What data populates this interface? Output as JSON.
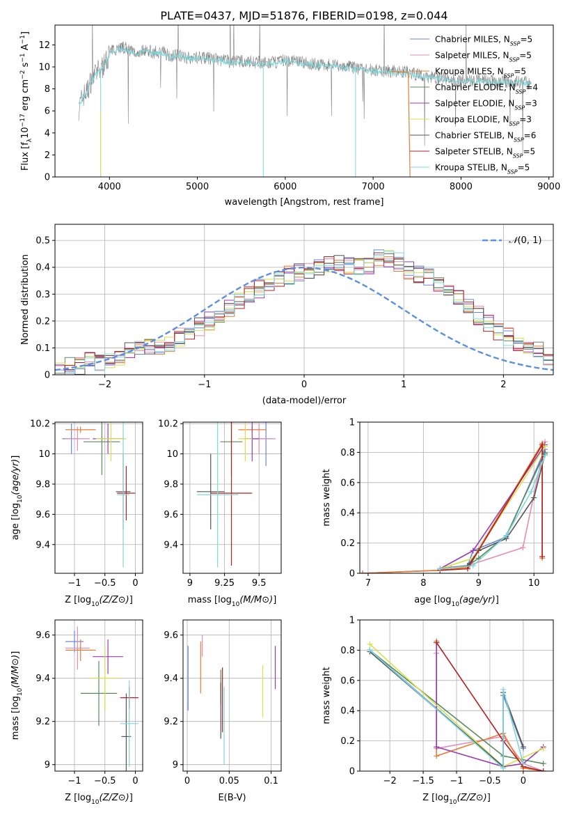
{
  "title": "PLATE=0437, MJD=51876, FIBERID=0198, z=0.044",
  "series_colors": [
    "#6a86e0",
    "#e58bb6",
    "#e87c2f",
    "#5a8a5f",
    "#9a3ab5",
    "#d6e04a",
    "#555555",
    "#b22020",
    "#7fd6dc"
  ],
  "chart_data": [
    {
      "id": "spectrum",
      "type": "line",
      "xlabel": "wavelength [Angstrom, rest frame]",
      "ylabel": "Flux [f_λ10^-17 erg cm^-2 s^-1 A^-1]",
      "xlim": [
        3380,
        9050
      ],
      "ylim": [
        0,
        13.8
      ],
      "xticks": [
        4000,
        5000,
        6000,
        7000,
        8000,
        9000
      ],
      "yticks": [
        0,
        2,
        4,
        6,
        8,
        10,
        12
      ],
      "grid": false,
      "legend_position": "top-right",
      "legend": [
        "Chabrier MILES, N_SSP=5",
        "Salpeter MILES, N_SSP=5",
        "Kroupa MILES, N_SSP=5",
        "Chabrier ELODIE, N_SSP=4",
        "Salpeter ELODIE, N_SSP=3",
        "Kroupa ELODIE, N_SSP=3",
        "Chabrier STELIB, N_SSP=6",
        "Salpeter STELIB, N_SSP=5",
        "Kroupa STELIB, N_SSP=5"
      ],
      "data_series": {
        "name": "data",
        "x": [
          3650,
          3700,
          3750,
          3800,
          3850,
          3900,
          3950,
          4000,
          4100,
          4200,
          4300,
          4400,
          4500,
          4600,
          4700,
          4800,
          4900,
          5000,
          5200,
          5400,
          5600,
          5800,
          6000,
          6200,
          6400,
          6600,
          6800,
          7000,
          7200,
          7400,
          7600,
          7800,
          8000,
          8200,
          8400,
          8600,
          8800
        ],
        "y": [
          6.2,
          7.4,
          7.8,
          9.0,
          9.4,
          9.8,
          10.3,
          11.3,
          11.8,
          11.7,
          11.2,
          11.6,
          11.3,
          11.4,
          11.0,
          11.1,
          10.8,
          10.9,
          10.7,
          10.5,
          10.5,
          10.3,
          10.6,
          10.4,
          10.2,
          10.1,
          9.9,
          9.7,
          9.6,
          9.5,
          9.1,
          9.0,
          8.7,
          8.8,
          8.6,
          8.7,
          8.5
        ]
      },
      "model_series": {
        "x": [
          3650,
          3700,
          3750,
          3800,
          3850,
          3900,
          3950,
          4000,
          4100,
          4200,
          4300,
          4400,
          4500,
          4600,
          4700,
          4800,
          4900,
          5000,
          5200,
          5400,
          5600,
          5800,
          6000,
          6200,
          6400,
          6600,
          6800,
          7000,
          7200,
          7400,
          7600,
          7800,
          8000,
          8200,
          8400,
          8600,
          8800
        ],
        "y": [
          6.6,
          7.2,
          7.7,
          8.8,
          9.3,
          9.7,
          10.2,
          11.2,
          11.6,
          11.5,
          11.1,
          11.4,
          11.2,
          11.2,
          10.9,
          11.0,
          10.8,
          10.8,
          10.6,
          10.4,
          10.4,
          10.3,
          10.5,
          10.3,
          10.1,
          10.0,
          9.8,
          9.6,
          9.5,
          9.4,
          9.0,
          8.9,
          8.7,
          8.7,
          8.6,
          8.6,
          8.5
        ]
      }
    },
    {
      "id": "residuals",
      "type": "histogram",
      "xlabel": "(data-model)/error",
      "ylabel": "Normed distribution",
      "xlim": [
        -2.5,
        2.5
      ],
      "ylim": [
        0,
        0.56
      ],
      "xticks": [
        -2,
        -1,
        0,
        1,
        2
      ],
      "yticks": [
        0,
        0.1,
        0.2,
        0.3,
        0.4,
        0.5
      ],
      "grid": true,
      "legend_position": "top-right",
      "reference_curve": "N(0,1)",
      "bin_edges_start": -2.5,
      "bin_width": 0.1,
      "values": [
        0.02,
        0.03,
        0.03,
        0.05,
        0.05,
        0.06,
        0.07,
        0.09,
        0.1,
        0.1,
        0.11,
        0.12,
        0.14,
        0.16,
        0.18,
        0.2,
        0.22,
        0.25,
        0.27,
        0.3,
        0.32,
        0.33,
        0.35,
        0.37,
        0.38,
        0.39,
        0.4,
        0.41,
        0.42,
        0.41,
        0.4,
        0.41,
        0.43,
        0.43,
        0.42,
        0.39,
        0.37,
        0.36,
        0.34,
        0.31,
        0.29,
        0.25,
        0.22,
        0.19,
        0.16,
        0.14,
        0.12,
        0.1,
        0.09,
        0.07
      ]
    },
    {
      "id": "age_vs_Z",
      "type": "errorbar",
      "xlabel": "Z [log10(Z/Z⊙)]",
      "ylabel": "age [log10(age/yr)]",
      "xlim": [
        -1.32,
        0.12
      ],
      "ylim": [
        9.21,
        10.21
      ],
      "xticks": [
        -1.0,
        -0.5,
        0.0
      ],
      "yticks": [
        9.4,
        9.6,
        9.8,
        10.0,
        10.2
      ],
      "grid": true,
      "points": [
        {
          "x": -1.05,
          "y": 10.1,
          "xerr": 0.15,
          "yerr": 0.1
        },
        {
          "x": -0.95,
          "y": 10.1,
          "xerr": 0.2,
          "yerr": 0.08
        },
        {
          "x": -0.9,
          "y": 10.16,
          "xerr": 0.25,
          "yerr": 0.02
        },
        {
          "x": -0.55,
          "y": 10.08,
          "xerr": 0.3,
          "yerr": 0.22
        },
        {
          "x": -0.45,
          "y": 10.1,
          "xerr": 0.25,
          "yerr": 0.1
        },
        {
          "x": -0.4,
          "y": 10.1,
          "xerr": 0.25,
          "yerr": 0.15
        },
        {
          "x": -0.2,
          "y": 9.75,
          "xerr": 0.12,
          "yerr": 0.25
        },
        {
          "x": -0.15,
          "y": 9.74,
          "xerr": 0.15,
          "yerr": 0.18
        },
        {
          "x": -0.2,
          "y": 9.73,
          "xerr": 0.1,
          "yerr": 0.48
        }
      ]
    },
    {
      "id": "age_vs_mass",
      "type": "errorbar",
      "xlabel": "mass [log10(M/M⊙)]",
      "ylabel": "",
      "xlim": [
        8.95,
        9.66
      ],
      "ylim": [
        9.21,
        10.21
      ],
      "xticks": [
        9.0,
        9.25,
        9.5
      ],
      "yticks": [
        9.4,
        9.6,
        9.8,
        10.0,
        10.2
      ],
      "grid": true,
      "points": [
        {
          "x": 9.55,
          "y": 10.1,
          "xerr": 0.05,
          "yerr": 0.18
        },
        {
          "x": 9.5,
          "y": 10.1,
          "xerr": 0.12,
          "yerr": 0.1
        },
        {
          "x": 9.45,
          "y": 10.16,
          "xerr": 0.1,
          "yerr": 0.02
        },
        {
          "x": 9.3,
          "y": 10.08,
          "xerr": 0.08,
          "yerr": 0.22
        },
        {
          "x": 9.45,
          "y": 10.1,
          "xerr": 0.05,
          "yerr": 0.15
        },
        {
          "x": 9.4,
          "y": 10.1,
          "xerr": 0.05,
          "yerr": 0.15
        },
        {
          "x": 9.15,
          "y": 9.75,
          "xerr": 0.1,
          "yerr": 0.25
        },
        {
          "x": 9.3,
          "y": 9.74,
          "xerr": 0.15,
          "yerr": 0.48
        },
        {
          "x": 9.2,
          "y": 9.73,
          "xerr": 0.15,
          "yerr": 0.48
        }
      ]
    },
    {
      "id": "weight_vs_age",
      "type": "line",
      "xlabel": "age [log10(age/yr)]",
      "ylabel": "mass weight",
      "xlim": [
        6.85,
        10.35
      ],
      "ylim": [
        0,
        1.0
      ],
      "xticks": [
        7,
        8,
        9,
        10
      ],
      "yticks": [
        0.0,
        0.2,
        0.4,
        0.6,
        0.8,
        1.0
      ],
      "grid": true,
      "lines": [
        {
          "x": [
            6.9,
            8.3,
            8.5,
            8.8,
            8.9,
            9.5,
            10.2
          ],
          "y": [
            0.0,
            0.02,
            0.04,
            0.05,
            0.15,
            0.24,
            0.82
          ]
        },
        {
          "x": [
            6.9,
            8.3,
            8.5,
            8.8,
            9.8,
            10.2
          ],
          "y": [
            0.0,
            0.02,
            0.04,
            0.05,
            0.17,
            0.87
          ]
        },
        {
          "x": [
            6.9,
            8.3,
            8.8,
            10.15,
            10.15
          ],
          "y": [
            0.0,
            0.02,
            0.04,
            0.86,
            0.1
          ]
        },
        {
          "x": [
            8.3,
            8.8,
            9.0,
            9.5,
            10.2
          ],
          "y": [
            0.03,
            0.05,
            0.1,
            0.25,
            0.8
          ]
        },
        {
          "x": [
            8.3,
            8.9,
            10.2
          ],
          "y": [
            0.03,
            0.15,
            0.85
          ]
        },
        {
          "x": [
            8.3,
            8.9,
            10.2
          ],
          "y": [
            0.03,
            0.1,
            0.84
          ]
        },
        {
          "x": [
            8.3,
            8.8,
            9.0,
            9.5,
            10.0,
            10.2
          ],
          "y": [
            0.03,
            0.05,
            0.15,
            0.23,
            0.5,
            0.79
          ]
        },
        {
          "x": [
            8.3,
            8.8,
            10.15,
            10.15
          ],
          "y": [
            0.02,
            0.03,
            0.85,
            0.11
          ]
        },
        {
          "x": [
            8.3,
            8.9,
            9.5,
            9.95,
            10.2
          ],
          "y": [
            0.03,
            0.05,
            0.25,
            0.54,
            0.78
          ]
        }
      ]
    },
    {
      "id": "mass_vs_Z",
      "type": "errorbar",
      "xlabel": "Z [log10(Z/Z⊙)]",
      "ylabel": "mass [log10(M/M⊙)]",
      "xlim": [
        -1.32,
        0.12
      ],
      "ylim": [
        8.97,
        9.67
      ],
      "xticks": [
        -1.0,
        -0.5,
        0.0
      ],
      "yticks": [
        9.0,
        9.2,
        9.4,
        9.6
      ],
      "grid": true,
      "points": [
        {
          "x": -1.0,
          "y": 9.57,
          "xerr": 0.15,
          "yerr": 0.05
        },
        {
          "x": -0.95,
          "y": 9.54,
          "xerr": 0.2,
          "yerr": 0.1
        },
        {
          "x": -0.9,
          "y": 9.53,
          "xerr": 0.25,
          "yerr": 0.05
        },
        {
          "x": -0.6,
          "y": 9.33,
          "xerr": 0.3,
          "yerr": 0.15
        },
        {
          "x": -0.45,
          "y": 9.5,
          "xerr": 0.25,
          "yerr": 0.08
        },
        {
          "x": -0.5,
          "y": 9.4,
          "xerr": 0.25,
          "yerr": 0.15
        },
        {
          "x": -0.15,
          "y": 9.13,
          "xerr": 0.08,
          "yerr": 0.2
        },
        {
          "x": -0.1,
          "y": 9.31,
          "xerr": 0.15,
          "yerr": 0.05
        },
        {
          "x": -0.1,
          "y": 9.19,
          "xerr": 0.15,
          "yerr": 0.2
        }
      ]
    },
    {
      "id": "mass_vs_EBV",
      "type": "errorbar",
      "xlabel": "E(B-V)",
      "ylabel": "",
      "xlim": [
        -0.005,
        0.112
      ],
      "ylim": [
        8.97,
        9.67
      ],
      "xticks": [
        0.0,
        0.05,
        0.1
      ],
      "yticks": [
        9.0,
        9.2,
        9.4,
        9.6
      ],
      "grid": true,
      "points": [
        {
          "x": 0.001,
          "y": 9.4,
          "xerr": 0,
          "yerr": 0.15
        },
        {
          "x": 0.018,
          "y": 9.55,
          "xerr": 0,
          "yerr": 0.05
        },
        {
          "x": 0.016,
          "y": 9.45,
          "xerr": 0,
          "yerr": 0.12
        },
        {
          "x": 0.04,
          "y": 9.36,
          "xerr": 0,
          "yerr": 0.08
        },
        {
          "x": 0.105,
          "y": 9.45,
          "xerr": 0,
          "yerr": 0.1
        },
        {
          "x": 0.09,
          "y": 9.34,
          "xerr": 0,
          "yerr": 0.12
        },
        {
          "x": 0.04,
          "y": 9.25,
          "xerr": 0,
          "yerr": 0.13
        },
        {
          "x": 0.042,
          "y": 9.3,
          "xerr": 0,
          "yerr": 0.15
        },
        {
          "x": 0.044,
          "y": 9.18,
          "xerr": 0,
          "yerr": 0.18
        }
      ]
    },
    {
      "id": "weight_vs_Z",
      "type": "line",
      "xlabel": "Z [log10(Z/Z⊙)]",
      "ylabel": "mass weight",
      "xlim": [
        -2.45,
        0.45
      ],
      "ylim": [
        0,
        1.0
      ],
      "xticks": [
        -2.0,
        -1.5,
        -1.0,
        -0.5,
        0.0
      ],
      "yticks": [
        0.0,
        0.2,
        0.4,
        0.6,
        0.8,
        1.0
      ],
      "grid": true,
      "lines": [
        {
          "x": [
            -2.3,
            -0.3,
            -0.3,
            0.0
          ],
          "y": [
            0.8,
            0.03,
            0.5,
            0.15
          ]
        },
        {
          "x": [
            -1.3,
            -1.3,
            -0.3,
            0.0,
            0.3
          ],
          "y": [
            0.78,
            0.15,
            0.23,
            0.05,
            0.0
          ]
        },
        {
          "x": [
            -1.3,
            -1.3,
            -0.3,
            0.0,
            0.3
          ],
          "y": [
            0.86,
            0.1,
            0.25,
            0.02,
            0.0
          ]
        },
        {
          "x": [
            -2.3,
            -0.3,
            0.3
          ],
          "y": [
            0.8,
            0.1,
            0.05
          ]
        },
        {
          "x": [
            -1.3,
            -1.3,
            -0.3,
            0.0,
            0.3
          ],
          "y": [
            0.85,
            0.16,
            0.03,
            0.05,
            0.16
          ]
        },
        {
          "x": [
            -2.3,
            -0.3,
            0.3
          ],
          "y": [
            0.84,
            0.03,
            0.15
          ]
        },
        {
          "x": [
            -2.3,
            -0.3,
            -0.3,
            0.0
          ],
          "y": [
            0.79,
            0.03,
            0.52,
            0.16
          ]
        },
        {
          "x": [
            -1.3,
            -0.3,
            0.0,
            0.3
          ],
          "y": [
            0.85,
            0.2,
            0.03,
            0.0
          ]
        },
        {
          "x": [
            -2.3,
            -0.3,
            -0.3,
            0.0
          ],
          "y": [
            0.8,
            0.02,
            0.54,
            0.05
          ]
        }
      ]
    }
  ]
}
